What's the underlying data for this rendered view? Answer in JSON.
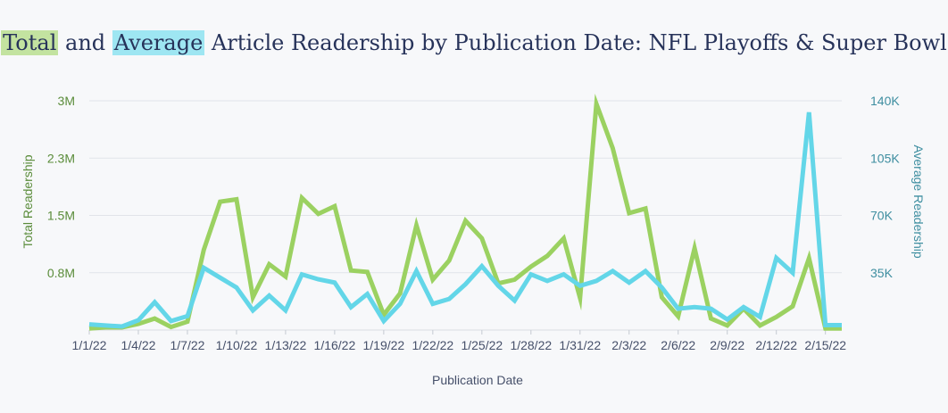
{
  "chart_data": {
    "type": "line",
    "title_parts": {
      "total": "Total",
      "and": "and",
      "average": "Average",
      "rest": "Article Readership by Publication Date: NFL Playoffs & Super Bowl"
    },
    "xlabel": "Publication Date",
    "ylabel_left": "Total Readership",
    "ylabel_right": "Average Readership",
    "x_tick_labels": [
      "1/1/22",
      "1/4/22",
      "1/7/22",
      "1/10/22",
      "1/13/22",
      "1/16/22",
      "1/19/22",
      "1/22/22",
      "1/25/22",
      "1/28/22",
      "1/31/22",
      "2/3/22",
      "2/6/22",
      "2/9/22",
      "2/12/22",
      "2/15/22"
    ],
    "y_left_ticks": [
      {
        "value": 750000,
        "label": "0.8M"
      },
      {
        "value": 1500000,
        "label": "1.5M"
      },
      {
        "value": 2250000,
        "label": "2.3M"
      },
      {
        "value": 3000000,
        "label": "3M"
      }
    ],
    "y_right_ticks": [
      {
        "value": 35000,
        "label": "35K"
      },
      {
        "value": 70000,
        "label": "70K"
      },
      {
        "value": 105000,
        "label": "105K"
      },
      {
        "value": 140000,
        "label": "140K"
      }
    ],
    "ylim_left": [
      0,
      3000000
    ],
    "ylim_right": [
      0,
      140000
    ],
    "dates": [
      "1/1/22",
      "1/2/22",
      "1/3/22",
      "1/4/22",
      "1/5/22",
      "1/6/22",
      "1/7/22",
      "1/8/22",
      "1/9/22",
      "1/10/22",
      "1/11/22",
      "1/12/22",
      "1/13/22",
      "1/14/22",
      "1/15/22",
      "1/16/22",
      "1/17/22",
      "1/18/22",
      "1/19/22",
      "1/20/22",
      "1/21/22",
      "1/22/22",
      "1/23/22",
      "1/24/22",
      "1/25/22",
      "1/26/22",
      "1/27/22",
      "1/28/22",
      "1/29/22",
      "1/30/22",
      "1/31/22",
      "2/1/22",
      "2/2/22",
      "2/3/22",
      "2/4/22",
      "2/5/22",
      "2/6/22",
      "2/7/22",
      "2/8/22",
      "2/9/22",
      "2/10/22",
      "2/11/22",
      "2/12/22",
      "2/13/22",
      "2/14/22",
      "2/15/22",
      "2/16/22"
    ],
    "series": [
      {
        "name": "Total Readership",
        "axis": "left",
        "color": "#9bd161",
        "values": [
          20000,
          35000,
          35000,
          80000,
          150000,
          40000,
          110000,
          1050000,
          1680000,
          1710000,
          430000,
          860000,
          700000,
          1730000,
          1520000,
          1620000,
          780000,
          760000,
          200000,
          480000,
          1370000,
          660000,
          910000,
          1430000,
          1200000,
          610000,
          660000,
          830000,
          970000,
          1200000,
          420000,
          2960000,
          2380000,
          1530000,
          1590000,
          430000,
          180000,
          1070000,
          150000,
          60000,
          280000,
          60000,
          170000,
          310000,
          940000,
          20000,
          20000
        ]
      },
      {
        "name": "Average Readership",
        "axis": "right",
        "color": "#63d6e8",
        "values": [
          3500,
          2800,
          2200,
          6000,
          17000,
          5500,
          8500,
          38000,
          32000,
          26000,
          12000,
          21000,
          12000,
          34000,
          31000,
          29000,
          14000,
          22000,
          5500,
          16000,
          36000,
          16000,
          19000,
          28000,
          39000,
          27000,
          18000,
          34000,
          30000,
          34000,
          27000,
          30000,
          36000,
          29000,
          36000,
          26000,
          13000,
          14000,
          13000,
          6500,
          14000,
          8000,
          44000,
          35000,
          133000,
          3000,
          3000
        ]
      }
    ]
  }
}
